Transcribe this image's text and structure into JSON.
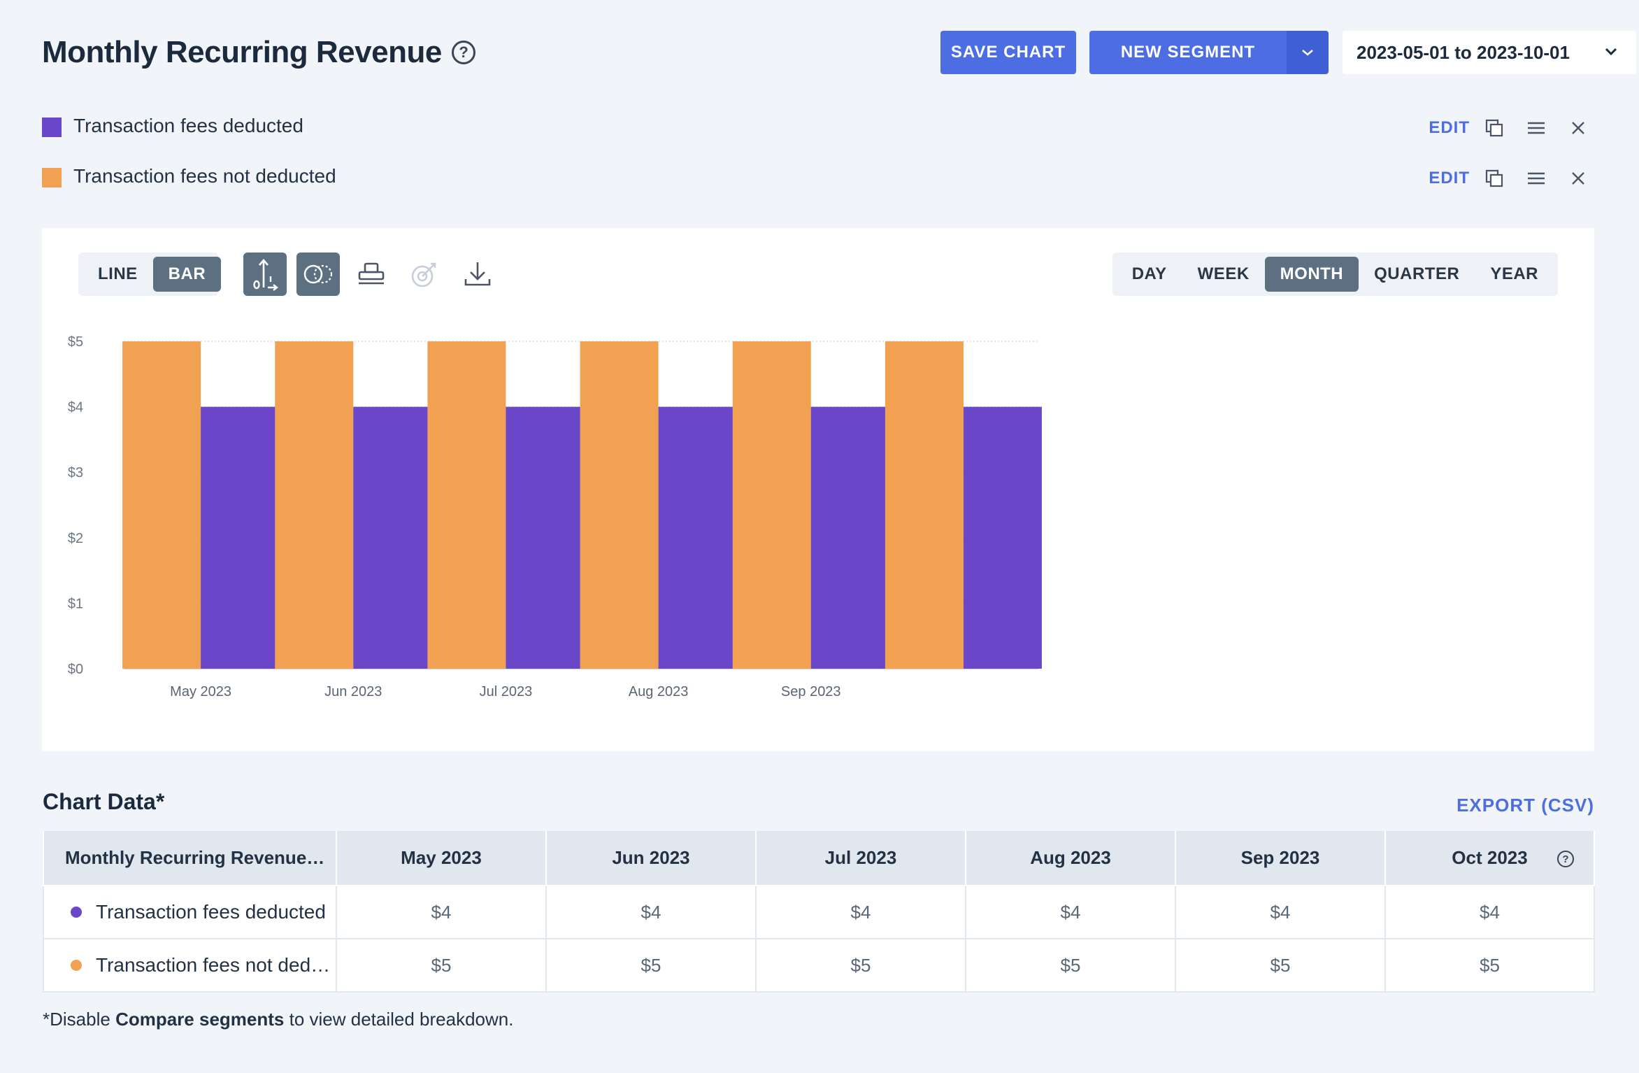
{
  "header": {
    "title": "Monthly Recurring Revenue",
    "help": "?",
    "save_chart": "SAVE CHART",
    "new_segment": "NEW SEGMENT",
    "date_range": "2023-05-01 to 2023-10-01"
  },
  "colors": {
    "accent": "#4d6ee3",
    "purple": "#6a47c9",
    "orange": "#f2a153"
  },
  "segments": [
    {
      "label": "Transaction fees deducted",
      "color": "#6a47c9",
      "edit": "EDIT"
    },
    {
      "label": "Transaction fees not deducted",
      "color": "#f2a153",
      "edit": "EDIT"
    }
  ],
  "toolbar": {
    "chart_types": [
      "LINE",
      "BAR"
    ],
    "active_chart_type": "BAR",
    "tools": [
      "axis-toggle-icon",
      "compare-segments-icon",
      "stack-icon",
      "goal-icon",
      "download-icon"
    ],
    "periods": [
      "DAY",
      "WEEK",
      "MONTH",
      "QUARTER",
      "YEAR"
    ],
    "active_period": "MONTH"
  },
  "chart_data": {
    "type": "bar",
    "categories": [
      "May 2023",
      "Jun 2023",
      "Jul 2023",
      "Aug 2023",
      "Sep 2023",
      ""
    ],
    "series": [
      {
        "name": "Transaction fees not deducted",
        "color": "#f2a153",
        "values": [
          5,
          5,
          5,
          5,
          5,
          5
        ]
      },
      {
        "name": "Transaction fees deducted",
        "color": "#6a47c9",
        "values": [
          4,
          4,
          4,
          4,
          4,
          4
        ]
      }
    ],
    "yticks": [
      "$0",
      "$1",
      "$2",
      "$3",
      "$4",
      "$5"
    ],
    "ylim": [
      0,
      5
    ],
    "title": "Monthly Recurring Revenue",
    "xlabel": "",
    "ylabel": ""
  },
  "table": {
    "title": "Chart Data*",
    "export": "EXPORT (CSV)",
    "columns": [
      "Monthly Recurring Revenue…",
      "May 2023",
      "Jun 2023",
      "Jul 2023",
      "Aug 2023",
      "Sep 2023",
      "Oct 2023"
    ],
    "rows": [
      {
        "label": "Transaction fees deducted",
        "color": "#6a47c9",
        "values": [
          "$4",
          "$4",
          "$4",
          "$4",
          "$4",
          "$4"
        ]
      },
      {
        "label": "Transaction fees not ded…",
        "color": "#f2a153",
        "values": [
          "$5",
          "$5",
          "$5",
          "$5",
          "$5",
          "$5"
        ]
      }
    ]
  },
  "footnote": {
    "prefix": "*Disable ",
    "bold": "Compare segments",
    "suffix": " to view detailed breakdown."
  }
}
